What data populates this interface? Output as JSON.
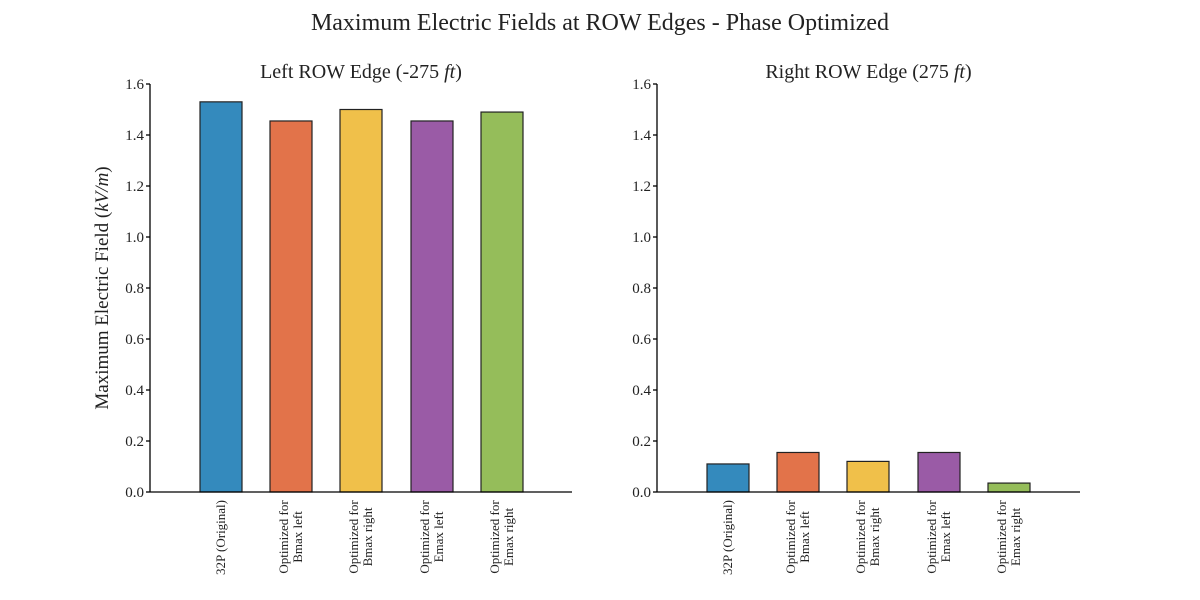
{
  "figure": {
    "title": "Maximum Electric Fields at ROW Edges - Phase Optimized"
  },
  "chart_data": [
    {
      "type": "bar",
      "title": "Left ROW Edge (-275 ft)",
      "title_parts": {
        "main": "Left ROW Edge (-275 ",
        "italic": "ft",
        "end": ")"
      },
      "ylabel": "Maximum Electric Field (kV/m)",
      "ylabel_parts": {
        "main": "Maximum Electric Field (",
        "italic": "kV/m",
        "end": ")"
      },
      "ylim": [
        0,
        1.6
      ],
      "yticks": [
        "0.0",
        "0.2",
        "0.4",
        "0.6",
        "0.8",
        "1.0",
        "1.2",
        "1.4",
        "1.6"
      ],
      "categories": [
        [
          "32P (Original)"
        ],
        [
          "Optimized for",
          "Bmax left"
        ],
        [
          "Optimized for",
          "Bmax right"
        ],
        [
          "Optimized for",
          "Emax left"
        ],
        [
          "Optimized for",
          "Emax right"
        ]
      ],
      "values": [
        1.53,
        1.455,
        1.5,
        1.455,
        1.49
      ],
      "colors": [
        "#348ABD",
        "#E2734A",
        "#F0C04A",
        "#9A5BA6",
        "#95BD5A"
      ],
      "grid": false,
      "legend": "none"
    },
    {
      "type": "bar",
      "title": "Right ROW Edge (275 ft)",
      "title_parts": {
        "main": "Right ROW Edge (275 ",
        "italic": "ft",
        "end": ")"
      },
      "ylabel": "",
      "ylim": [
        0,
        1.6
      ],
      "yticks": [
        "0.0",
        "0.2",
        "0.4",
        "0.6",
        "0.8",
        "1.0",
        "1.2",
        "1.4",
        "1.6"
      ],
      "categories": [
        [
          "32P (Original)"
        ],
        [
          "Optimized for",
          "Bmax left"
        ],
        [
          "Optimized for",
          "Bmax right"
        ],
        [
          "Optimized for",
          "Emax left"
        ],
        [
          "Optimized for",
          "Emax right"
        ]
      ],
      "values": [
        0.11,
        0.155,
        0.12,
        0.155,
        0.035
      ],
      "colors": [
        "#348ABD",
        "#E2734A",
        "#F0C04A",
        "#9A5BA6",
        "#95BD5A"
      ],
      "grid": false,
      "legend": "none"
    }
  ]
}
